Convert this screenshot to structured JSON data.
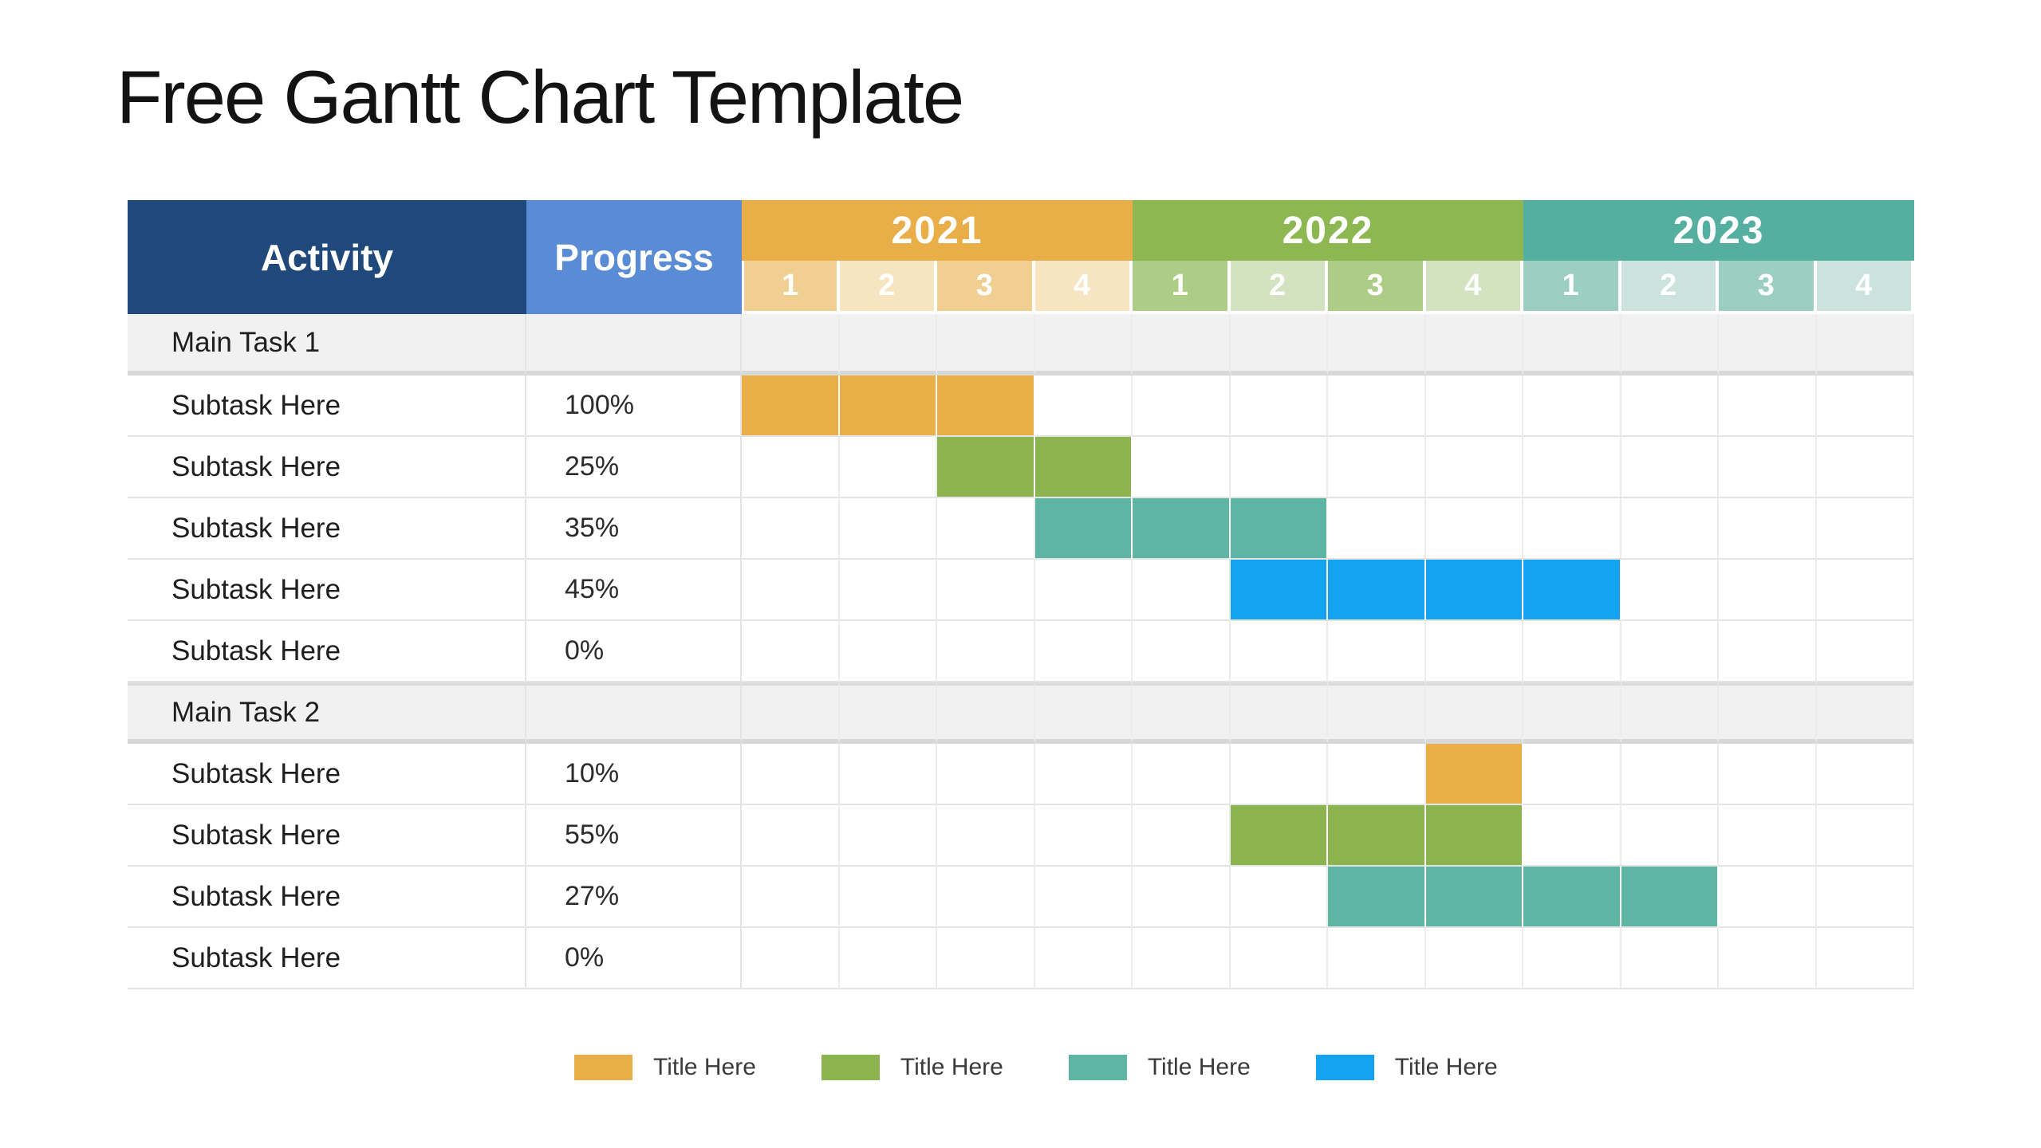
{
  "title": "Free Gantt Chart Template",
  "colors": {
    "activity_header_bg": "#20497B",
    "progress_header_bg": "#5A8CD5",
    "main_row_bg": "#F1F1F1",
    "grid_line": "#E4E4E4",
    "thick_divider": "#D8D8D8",
    "bar_orange": "#EAAE49",
    "bar_green": "#8BB44E",
    "bar_teal": "#5FB5A3",
    "bar_blue": "#14A3F0"
  },
  "table": {
    "activity_header": "Activity",
    "progress_header": "Progress",
    "quarter_labels": [
      "1",
      "2",
      "3",
      "4"
    ],
    "years": [
      {
        "label": "2021",
        "header_color": "#EAAE49",
        "q_odd": "#F1CF92",
        "q_even": "#F7E4C0"
      },
      {
        "label": "2022",
        "header_color": "#8CB751",
        "q_odd": "#ADCC85",
        "q_even": "#D3E2C0"
      },
      {
        "label": "2023",
        "header_color": "#55AFA0",
        "q_odd": "#9CCFC2",
        "q_even": "#CBE3DC"
      }
    ],
    "rows": [
      {
        "type": "main",
        "activity": "Main Task 1",
        "progress": ""
      },
      {
        "type": "sub",
        "activity": "Subtask Here",
        "progress": "100%",
        "bar": {
          "start": 0,
          "span": 3,
          "color": "#EAAE49"
        }
      },
      {
        "type": "sub",
        "activity": "Subtask Here",
        "progress": "25%",
        "bar": {
          "start": 2,
          "span": 2,
          "color": "#8BB44E"
        }
      },
      {
        "type": "sub",
        "activity": "Subtask Here",
        "progress": "35%",
        "bar": {
          "start": 3,
          "span": 3,
          "color": "#5FB5A3"
        }
      },
      {
        "type": "sub",
        "activity": "Subtask Here",
        "progress": "45%",
        "bar": {
          "start": 5,
          "span": 4,
          "color": "#14A3F0"
        }
      },
      {
        "type": "sub",
        "activity": "Subtask Here",
        "progress": "0%"
      },
      {
        "type": "main",
        "activity": "Main Task 2",
        "progress": ""
      },
      {
        "type": "sub",
        "activity": "Subtask Here",
        "progress": "10%",
        "bar": {
          "start": 7,
          "span": 1,
          "color": "#EAAE49"
        }
      },
      {
        "type": "sub",
        "activity": "Subtask Here",
        "progress": "55%",
        "bar": {
          "start": 5,
          "span": 3,
          "color": "#8BB44E"
        }
      },
      {
        "type": "sub",
        "activity": "Subtask Here",
        "progress": "27%",
        "bar": {
          "start": 6,
          "span": 4,
          "color": "#5FB5A3"
        }
      },
      {
        "type": "sub",
        "activity": "Subtask Here",
        "progress": "0%"
      }
    ]
  },
  "legend": [
    {
      "label": "Title Here",
      "color": "#EAAE49"
    },
    {
      "label": "Title Here",
      "color": "#8BB44E"
    },
    {
      "label": "Title Here",
      "color": "#5FB5A3"
    },
    {
      "label": "Title Here",
      "color": "#14A3F0"
    }
  ],
  "chart_data": {
    "type": "table",
    "title": "Free Gantt Chart Template",
    "columns": [
      "Activity",
      "Progress",
      "2021 Q1",
      "2021 Q2",
      "2021 Q3",
      "2021 Q4",
      "2022 Q1",
      "2022 Q2",
      "2022 Q3",
      "2022 Q4",
      "2023 Q1",
      "2023 Q2",
      "2023 Q3",
      "2023 Q4"
    ],
    "x_axis": {
      "years": [
        "2021",
        "2022",
        "2023"
      ],
      "quarters_per_year": [
        "1",
        "2",
        "3",
        "4"
      ]
    },
    "legend_entries": [
      "Title Here",
      "Title Here",
      "Title Here",
      "Title Here"
    ],
    "rows": [
      {
        "activity": "Main Task 1",
        "progress_pct": null,
        "bar": null
      },
      {
        "activity": "Subtask Here",
        "progress_pct": 100,
        "bar": {
          "from": "2021 Q1",
          "to": "2021 Q3",
          "series": "orange"
        }
      },
      {
        "activity": "Subtask Here",
        "progress_pct": 25,
        "bar": {
          "from": "2021 Q3",
          "to": "2021 Q4",
          "series": "green"
        }
      },
      {
        "activity": "Subtask Here",
        "progress_pct": 35,
        "bar": {
          "from": "2021 Q4",
          "to": "2022 Q2",
          "series": "teal"
        }
      },
      {
        "activity": "Subtask Here",
        "progress_pct": 45,
        "bar": {
          "from": "2022 Q2",
          "to": "2023 Q1",
          "series": "blue"
        }
      },
      {
        "activity": "Subtask Here",
        "progress_pct": 0,
        "bar": null
      },
      {
        "activity": "Main Task 2",
        "progress_pct": null,
        "bar": null
      },
      {
        "activity": "Subtask Here",
        "progress_pct": 10,
        "bar": {
          "from": "2022 Q4",
          "to": "2022 Q4",
          "series": "orange"
        }
      },
      {
        "activity": "Subtask Here",
        "progress_pct": 55,
        "bar": {
          "from": "2022 Q2",
          "to": "2022 Q4",
          "series": "green"
        }
      },
      {
        "activity": "Subtask Here",
        "progress_pct": 27,
        "bar": {
          "from": "2022 Q3",
          "to": "2023 Q2",
          "series": "teal"
        }
      },
      {
        "activity": "Subtask Here",
        "progress_pct": 0,
        "bar": null
      }
    ]
  }
}
